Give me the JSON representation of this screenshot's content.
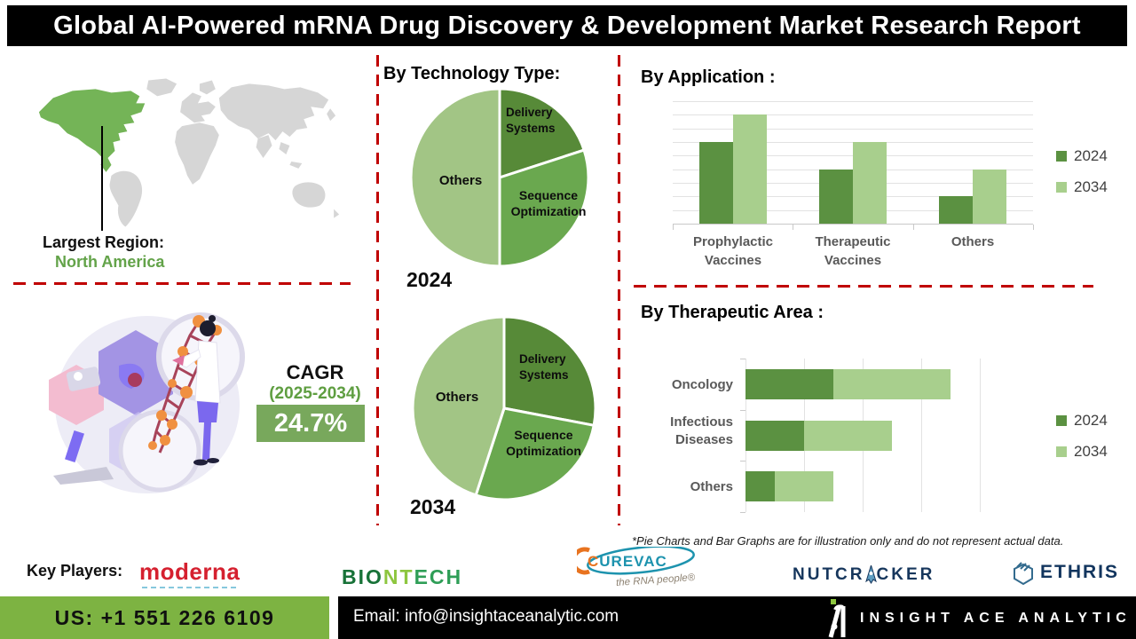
{
  "title": "Global AI-Powered mRNA Drug Discovery & Development Market Research Report",
  "map": {
    "largest_region_label": "Largest Region:",
    "largest_region_value": "North America",
    "highlight_color": "#74b457",
    "land_color": "#d6d6d6"
  },
  "cagr": {
    "label": "CAGR",
    "period": "(2025-2034)",
    "value": "24.7%",
    "accent_color": "#5f9e41",
    "box_color": "#78a85c"
  },
  "sections": {
    "technology": "By Technology Type:"
  },
  "chart_data": [
    {
      "type": "pie",
      "title": "2024",
      "section": "By Technology Type:",
      "slices": [
        {
          "label": "Delivery Systems",
          "value": 20,
          "color": "#578a38"
        },
        {
          "label": "Sequence Optimization",
          "value": 30,
          "color": "#6aa84f"
        },
        {
          "label": "Others",
          "value": 50,
          "color": "#a2c585"
        }
      ]
    },
    {
      "type": "pie",
      "title": "2034",
      "section": "By Technology Type:",
      "slices": [
        {
          "label": "Delivery Systems",
          "value": 28,
          "color": "#578a38"
        },
        {
          "label": "Sequence Optimization",
          "value": 27,
          "color": "#6aa84f"
        },
        {
          "label": "Others",
          "value": 45,
          "color": "#a2c585"
        }
      ]
    },
    {
      "type": "bar",
      "title": "By Application :",
      "categories": [
        "Prophylactic Vaccines",
        "Therapeutic Vaccines",
        "Others"
      ],
      "series": [
        {
          "name": "2024",
          "color": "#5b9141",
          "values": [
            6,
            4,
            2
          ]
        },
        {
          "name": "2034",
          "color": "#a8cf8d",
          "values": [
            8,
            6,
            4
          ]
        }
      ],
      "ylim": [
        0,
        9
      ],
      "grid": true,
      "legend_position": "right"
    },
    {
      "type": "stacked-bar-horizontal",
      "title": "By Therapeutic Area :",
      "categories": [
        "Oncology",
        "Infectious Diseases",
        "Others"
      ],
      "series": [
        {
          "name": "2024",
          "color": "#5b9141",
          "values": [
            3,
            2,
            1
          ]
        },
        {
          "name": "2034",
          "color": "#a8cf8d",
          "values": [
            4,
            3,
            2
          ]
        }
      ],
      "xlim": [
        0,
        8
      ],
      "grid": true,
      "legend_position": "right"
    }
  ],
  "disclaimer": "*Pie Charts and Bar Graphs are for illustration only and do not represent actual data.",
  "key_players": {
    "label": "Key Players:",
    "companies": [
      {
        "name": "moderna"
      },
      {
        "name": "BIONTECH",
        "parts": [
          "BIO",
          "NT",
          "ECH"
        ]
      },
      {
        "name": "CUREVAC",
        "parts": [
          "C",
          "UREVAC"
        ],
        "tagline": "the RNA people®"
      },
      {
        "name": "NUTCRACKER",
        "parts": [
          "NUTCR",
          "CKER"
        ]
      },
      {
        "name": "ETHRIS"
      }
    ]
  },
  "footer": {
    "phone": "US: +1 551 226 6109",
    "email": "Email: info@insightaceanalytic.com",
    "brand": "INSIGHT ACE ANALYTIC",
    "phone_bg": "#7db342"
  }
}
